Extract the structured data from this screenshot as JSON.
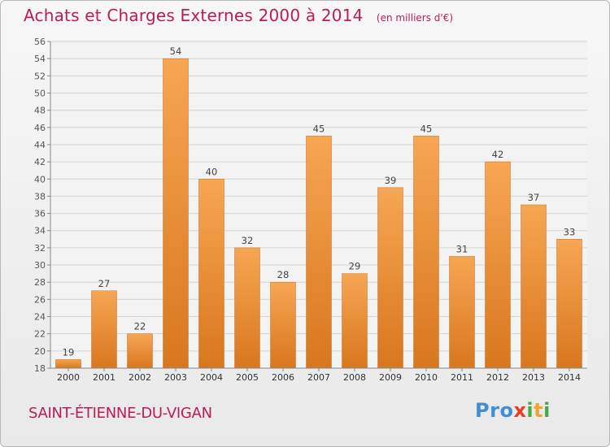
{
  "header": {
    "title": "Achats et Charges Externes 2000 à 2014",
    "unit": "(en milliers d'€)"
  },
  "footer": {
    "commune": "SAINT-ÉTIENNE-DU-VIGAN",
    "logo": [
      "P",
      "r",
      "o",
      "x",
      "i",
      "t",
      "i"
    ]
  },
  "colors": {
    "title": "#bd1b58",
    "bar_light": "#f6a550",
    "bar_dark": "#db7a20",
    "logo": [
      "#3f8fd2",
      "#3f8fd2",
      "#3f8fd2",
      "#e2401f",
      "#49a843",
      "#f1a330",
      "#49a843"
    ]
  },
  "chart_data": {
    "type": "bar",
    "title": "Achats et Charges Externes 2000 à 2014",
    "subtitle": "(en milliers d'€)",
    "categories": [
      "2000",
      "2001",
      "2002",
      "2003",
      "2004",
      "2005",
      "2006",
      "2007",
      "2008",
      "2009",
      "2010",
      "2011",
      "2012",
      "2013",
      "2014"
    ],
    "values": [
      19,
      27,
      22,
      54,
      40,
      32,
      28,
      45,
      29,
      39,
      45,
      31,
      42,
      37,
      33
    ],
    "ylim": [
      18,
      56
    ],
    "yticks": [
      18,
      20,
      22,
      24,
      26,
      28,
      30,
      32,
      34,
      36,
      38,
      40,
      42,
      44,
      46,
      48,
      50,
      52,
      54,
      56
    ],
    "grid": true,
    "legend": "none"
  }
}
